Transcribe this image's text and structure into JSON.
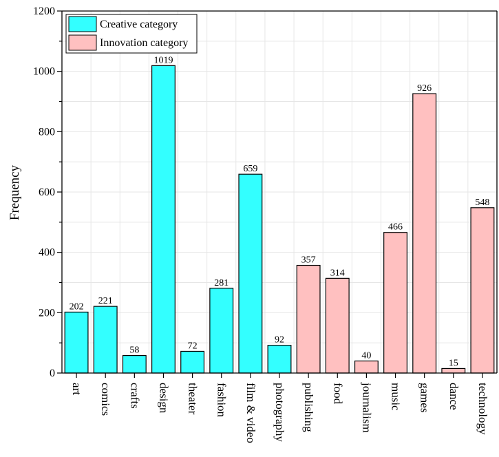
{
  "chart_data": {
    "type": "bar",
    "title": "",
    "xlabel": "",
    "ylabel": "Frequency",
    "ylim": [
      0,
      1200
    ],
    "yticks": [
      0,
      200,
      400,
      600,
      800,
      1000,
      1200
    ],
    "grid": true,
    "legend_position": "top-left",
    "categories": [
      "art",
      "comics",
      "crafts",
      "design",
      "theater",
      "fashion",
      "film & video",
      "photography",
      "publishing",
      "food",
      "journalism",
      "music",
      "games",
      "dance",
      "technology"
    ],
    "values": [
      202,
      221,
      58,
      1019,
      72,
      281,
      659,
      92,
      357,
      314,
      40,
      466,
      926,
      15,
      548
    ],
    "groups": [
      0,
      0,
      0,
      0,
      0,
      0,
      0,
      0,
      1,
      1,
      1,
      1,
      1,
      1,
      1
    ],
    "series": [
      {
        "name": "Creative category",
        "color": "#33ffff"
      },
      {
        "name": "Innovation category",
        "color": "#ffc0c0"
      }
    ]
  }
}
